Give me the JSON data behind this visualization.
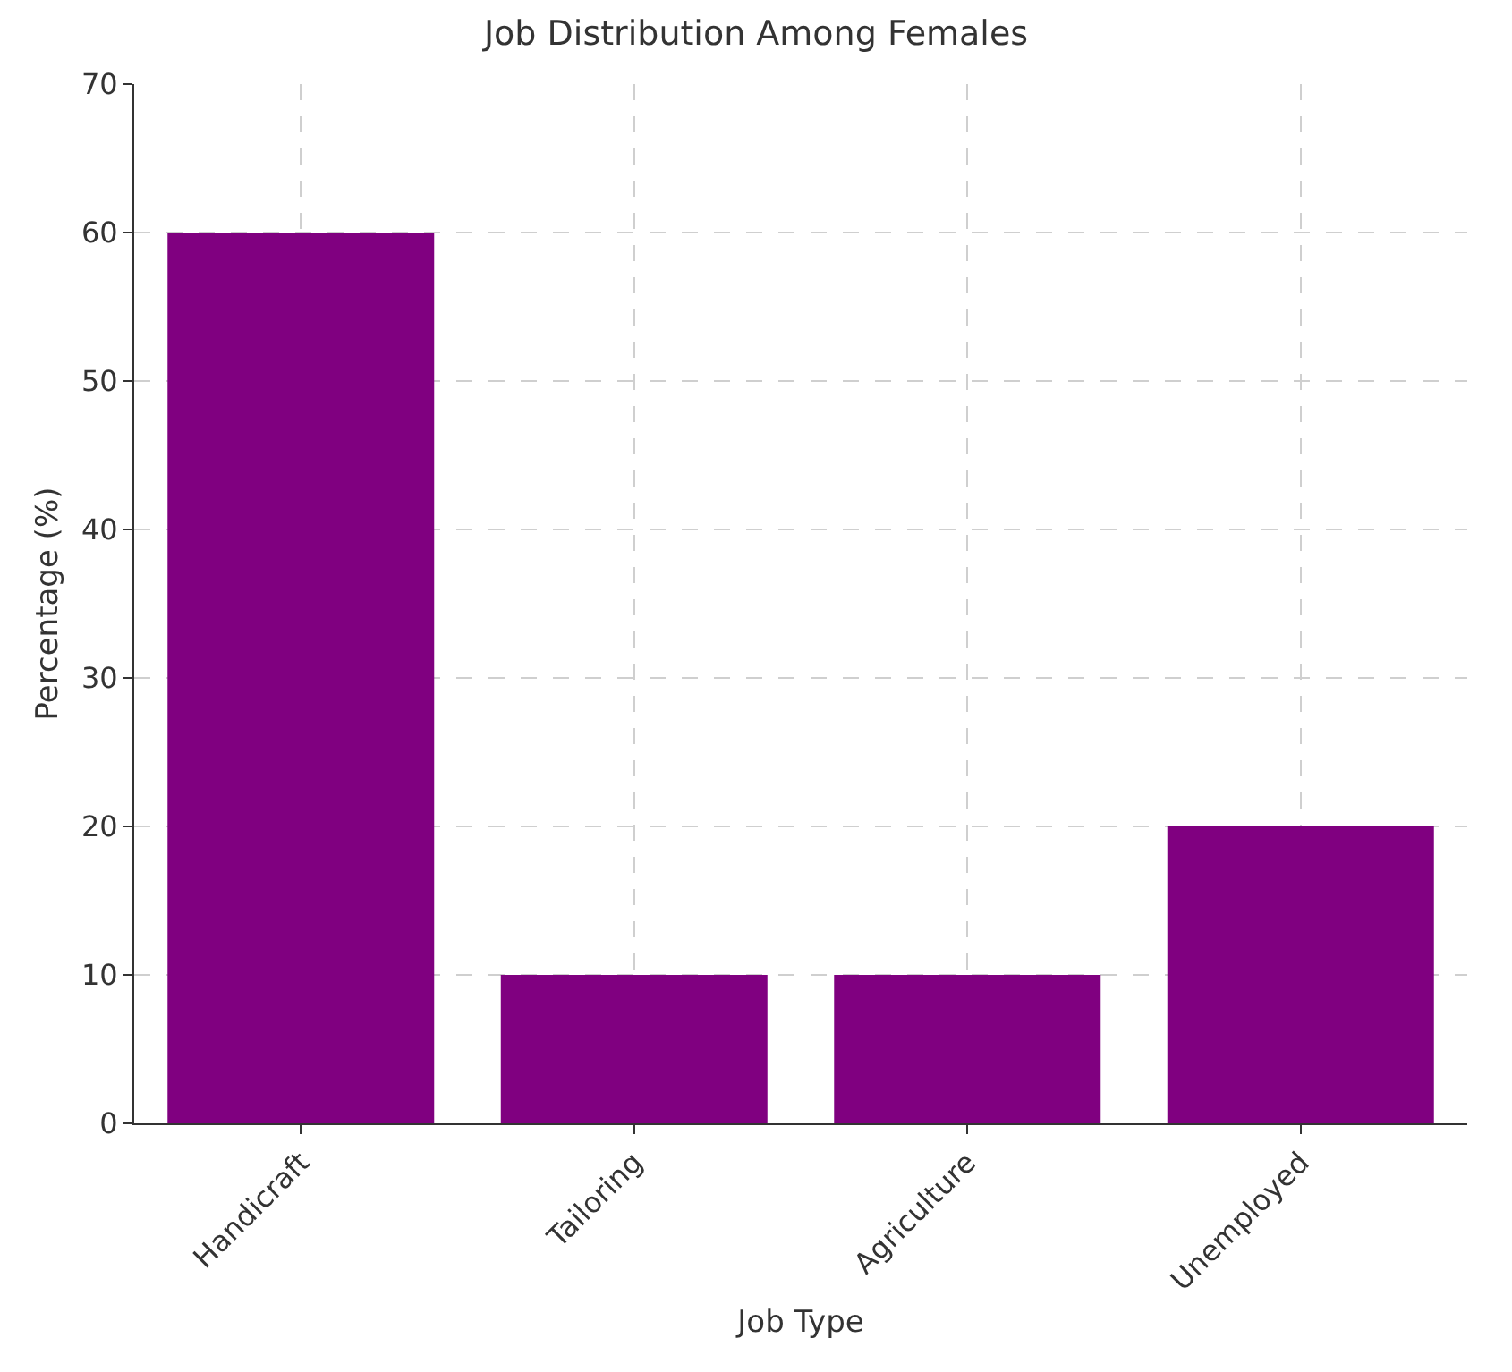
{
  "chart_data": {
    "type": "bar",
    "title": "Job Distribution Among Females",
    "xlabel": "Job Type",
    "ylabel": "Percentage (%)",
    "categories": [
      "Handicraft",
      "Tailoring",
      "Agriculture",
      "Unemployed"
    ],
    "values": [
      60,
      10,
      10,
      20
    ],
    "color": "#800080",
    "ylim": [
      0,
      70
    ],
    "yticks": [
      0,
      10,
      20,
      30,
      40,
      50,
      60,
      70
    ],
    "grid": true
  }
}
